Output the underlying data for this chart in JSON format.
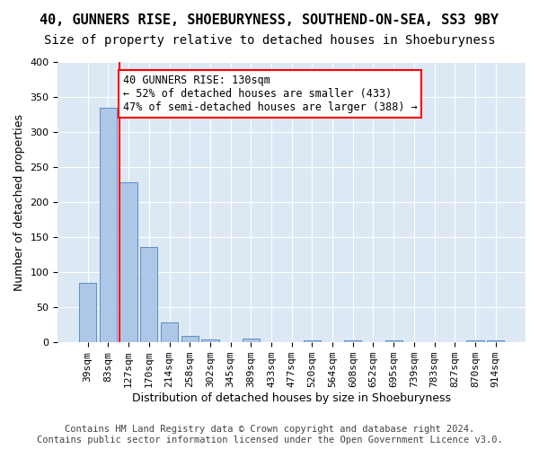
{
  "title": "40, GUNNERS RISE, SHOEBURYNESS, SOUTHEND-ON-SEA, SS3 9BY",
  "subtitle": "Size of property relative to detached houses in Shoeburyness",
  "xlabel": "Distribution of detached houses by size in Shoeburyness",
  "ylabel": "Number of detached properties",
  "footer_line1": "Contains HM Land Registry data © Crown copyright and database right 2024.",
  "footer_line2": "Contains public sector information licensed under the Open Government Licence v3.0.",
  "bins": [
    "39sqm",
    "83sqm",
    "127sqm",
    "170sqm",
    "214sqm",
    "258sqm",
    "302sqm",
    "345sqm",
    "389sqm",
    "433sqm",
    "477sqm",
    "520sqm",
    "564sqm",
    "608sqm",
    "652sqm",
    "695sqm",
    "739sqm",
    "783sqm",
    "827sqm",
    "870sqm",
    "914sqm"
  ],
  "values": [
    85,
    335,
    228,
    136,
    28,
    9,
    4,
    0,
    5,
    0,
    0,
    3,
    0,
    3,
    0,
    3,
    0,
    0,
    0,
    3,
    3
  ],
  "bar_color": "#aec6e8",
  "bar_edge_color": "#5a8fc2",
  "property_line_x": 2,
  "annotation_text": "40 GUNNERS RISE: 130sqm\n← 52% of detached houses are smaller (433)\n47% of semi-detached houses are larger (388) →",
  "annotation_box_color": "white",
  "annotation_box_edge": "red",
  "vline_color": "red",
  "ylim": [
    0,
    400
  ],
  "yticks": [
    0,
    50,
    100,
    150,
    200,
    250,
    300,
    350,
    400
  ],
  "background_color": "#dde8f5",
  "grid_color": "white",
  "title_fontsize": 11,
  "subtitle_fontsize": 10,
  "axis_label_fontsize": 9,
  "tick_fontsize": 8,
  "annotation_fontsize": 8.5,
  "footer_fontsize": 7.5
}
